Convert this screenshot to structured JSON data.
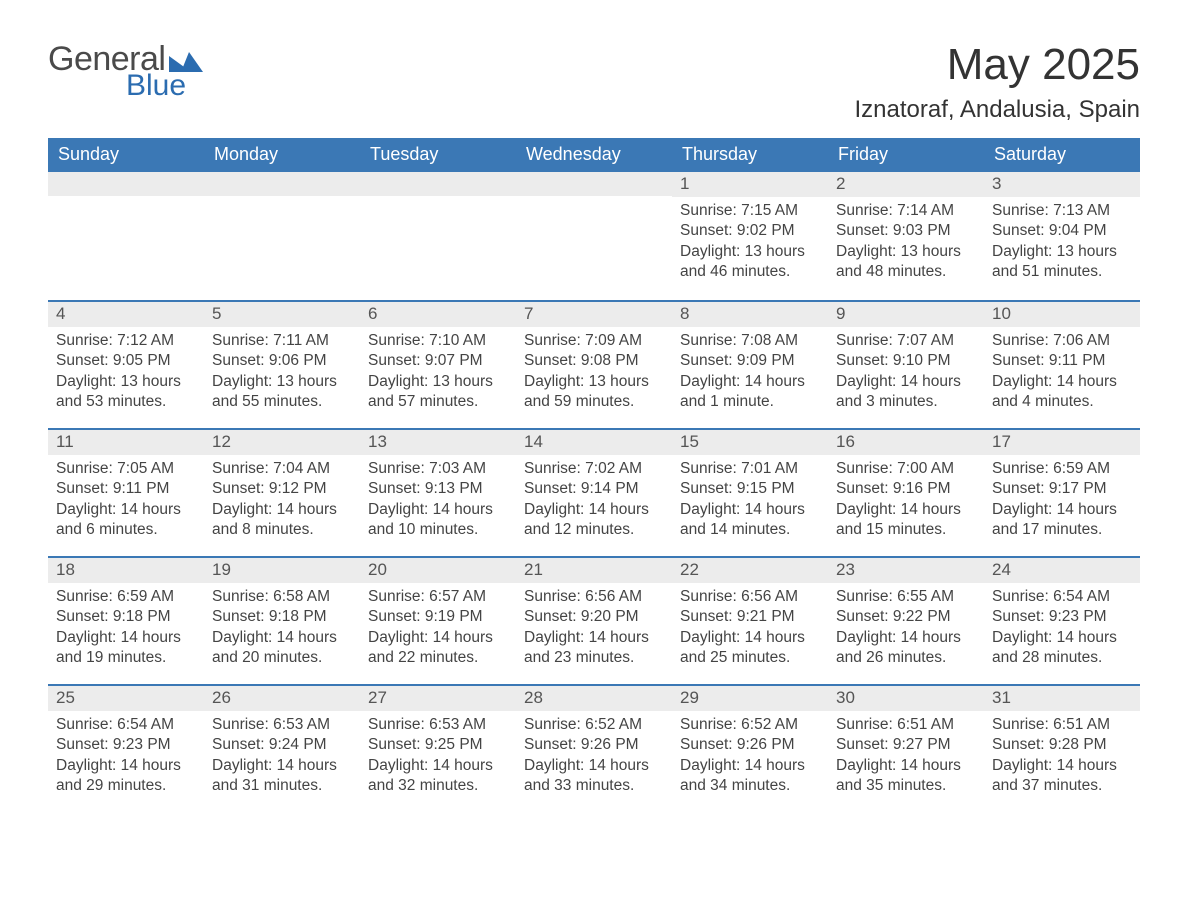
{
  "logo": {
    "text1": "General",
    "text2": "Blue",
    "accent_color": "#2b6cb0",
    "text_color": "#4a4a4a"
  },
  "title": "May 2025",
  "location": "Iznatoraf, Andalusia, Spain",
  "colors": {
    "header_bg": "#3b78b5",
    "header_text": "#ffffff",
    "daynum_bg": "#ececec",
    "daynum_text": "#555555",
    "body_text": "#444444",
    "divider": "#3b78b5",
    "page_bg": "#ffffff"
  },
  "weekdays": [
    "Sunday",
    "Monday",
    "Tuesday",
    "Wednesday",
    "Thursday",
    "Friday",
    "Saturday"
  ],
  "weeks": [
    [
      null,
      null,
      null,
      null,
      {
        "n": "1",
        "sunrise": "Sunrise: 7:15 AM",
        "sunset": "Sunset: 9:02 PM",
        "daylight": "Daylight: 13 hours and 46 minutes."
      },
      {
        "n": "2",
        "sunrise": "Sunrise: 7:14 AM",
        "sunset": "Sunset: 9:03 PM",
        "daylight": "Daylight: 13 hours and 48 minutes."
      },
      {
        "n": "3",
        "sunrise": "Sunrise: 7:13 AM",
        "sunset": "Sunset: 9:04 PM",
        "daylight": "Daylight: 13 hours and 51 minutes."
      }
    ],
    [
      {
        "n": "4",
        "sunrise": "Sunrise: 7:12 AM",
        "sunset": "Sunset: 9:05 PM",
        "daylight": "Daylight: 13 hours and 53 minutes."
      },
      {
        "n": "5",
        "sunrise": "Sunrise: 7:11 AM",
        "sunset": "Sunset: 9:06 PM",
        "daylight": "Daylight: 13 hours and 55 minutes."
      },
      {
        "n": "6",
        "sunrise": "Sunrise: 7:10 AM",
        "sunset": "Sunset: 9:07 PM",
        "daylight": "Daylight: 13 hours and 57 minutes."
      },
      {
        "n": "7",
        "sunrise": "Sunrise: 7:09 AM",
        "sunset": "Sunset: 9:08 PM",
        "daylight": "Daylight: 13 hours and 59 minutes."
      },
      {
        "n": "8",
        "sunrise": "Sunrise: 7:08 AM",
        "sunset": "Sunset: 9:09 PM",
        "daylight": "Daylight: 14 hours and 1 minute."
      },
      {
        "n": "9",
        "sunrise": "Sunrise: 7:07 AM",
        "sunset": "Sunset: 9:10 PM",
        "daylight": "Daylight: 14 hours and 3 minutes."
      },
      {
        "n": "10",
        "sunrise": "Sunrise: 7:06 AM",
        "sunset": "Sunset: 9:11 PM",
        "daylight": "Daylight: 14 hours and 4 minutes."
      }
    ],
    [
      {
        "n": "11",
        "sunrise": "Sunrise: 7:05 AM",
        "sunset": "Sunset: 9:11 PM",
        "daylight": "Daylight: 14 hours and 6 minutes."
      },
      {
        "n": "12",
        "sunrise": "Sunrise: 7:04 AM",
        "sunset": "Sunset: 9:12 PM",
        "daylight": "Daylight: 14 hours and 8 minutes."
      },
      {
        "n": "13",
        "sunrise": "Sunrise: 7:03 AM",
        "sunset": "Sunset: 9:13 PM",
        "daylight": "Daylight: 14 hours and 10 minutes."
      },
      {
        "n": "14",
        "sunrise": "Sunrise: 7:02 AM",
        "sunset": "Sunset: 9:14 PM",
        "daylight": "Daylight: 14 hours and 12 minutes."
      },
      {
        "n": "15",
        "sunrise": "Sunrise: 7:01 AM",
        "sunset": "Sunset: 9:15 PM",
        "daylight": "Daylight: 14 hours and 14 minutes."
      },
      {
        "n": "16",
        "sunrise": "Sunrise: 7:00 AM",
        "sunset": "Sunset: 9:16 PM",
        "daylight": "Daylight: 14 hours and 15 minutes."
      },
      {
        "n": "17",
        "sunrise": "Sunrise: 6:59 AM",
        "sunset": "Sunset: 9:17 PM",
        "daylight": "Daylight: 14 hours and 17 minutes."
      }
    ],
    [
      {
        "n": "18",
        "sunrise": "Sunrise: 6:59 AM",
        "sunset": "Sunset: 9:18 PM",
        "daylight": "Daylight: 14 hours and 19 minutes."
      },
      {
        "n": "19",
        "sunrise": "Sunrise: 6:58 AM",
        "sunset": "Sunset: 9:18 PM",
        "daylight": "Daylight: 14 hours and 20 minutes."
      },
      {
        "n": "20",
        "sunrise": "Sunrise: 6:57 AM",
        "sunset": "Sunset: 9:19 PM",
        "daylight": "Daylight: 14 hours and 22 minutes."
      },
      {
        "n": "21",
        "sunrise": "Sunrise: 6:56 AM",
        "sunset": "Sunset: 9:20 PM",
        "daylight": "Daylight: 14 hours and 23 minutes."
      },
      {
        "n": "22",
        "sunrise": "Sunrise: 6:56 AM",
        "sunset": "Sunset: 9:21 PM",
        "daylight": "Daylight: 14 hours and 25 minutes."
      },
      {
        "n": "23",
        "sunrise": "Sunrise: 6:55 AM",
        "sunset": "Sunset: 9:22 PM",
        "daylight": "Daylight: 14 hours and 26 minutes."
      },
      {
        "n": "24",
        "sunrise": "Sunrise: 6:54 AM",
        "sunset": "Sunset: 9:23 PM",
        "daylight": "Daylight: 14 hours and 28 minutes."
      }
    ],
    [
      {
        "n": "25",
        "sunrise": "Sunrise: 6:54 AM",
        "sunset": "Sunset: 9:23 PM",
        "daylight": "Daylight: 14 hours and 29 minutes."
      },
      {
        "n": "26",
        "sunrise": "Sunrise: 6:53 AM",
        "sunset": "Sunset: 9:24 PM",
        "daylight": "Daylight: 14 hours and 31 minutes."
      },
      {
        "n": "27",
        "sunrise": "Sunrise: 6:53 AM",
        "sunset": "Sunset: 9:25 PM",
        "daylight": "Daylight: 14 hours and 32 minutes."
      },
      {
        "n": "28",
        "sunrise": "Sunrise: 6:52 AM",
        "sunset": "Sunset: 9:26 PM",
        "daylight": "Daylight: 14 hours and 33 minutes."
      },
      {
        "n": "29",
        "sunrise": "Sunrise: 6:52 AM",
        "sunset": "Sunset: 9:26 PM",
        "daylight": "Daylight: 14 hours and 34 minutes."
      },
      {
        "n": "30",
        "sunrise": "Sunrise: 6:51 AM",
        "sunset": "Sunset: 9:27 PM",
        "daylight": "Daylight: 14 hours and 35 minutes."
      },
      {
        "n": "31",
        "sunrise": "Sunrise: 6:51 AM",
        "sunset": "Sunset: 9:28 PM",
        "daylight": "Daylight: 14 hours and 37 minutes."
      }
    ]
  ]
}
